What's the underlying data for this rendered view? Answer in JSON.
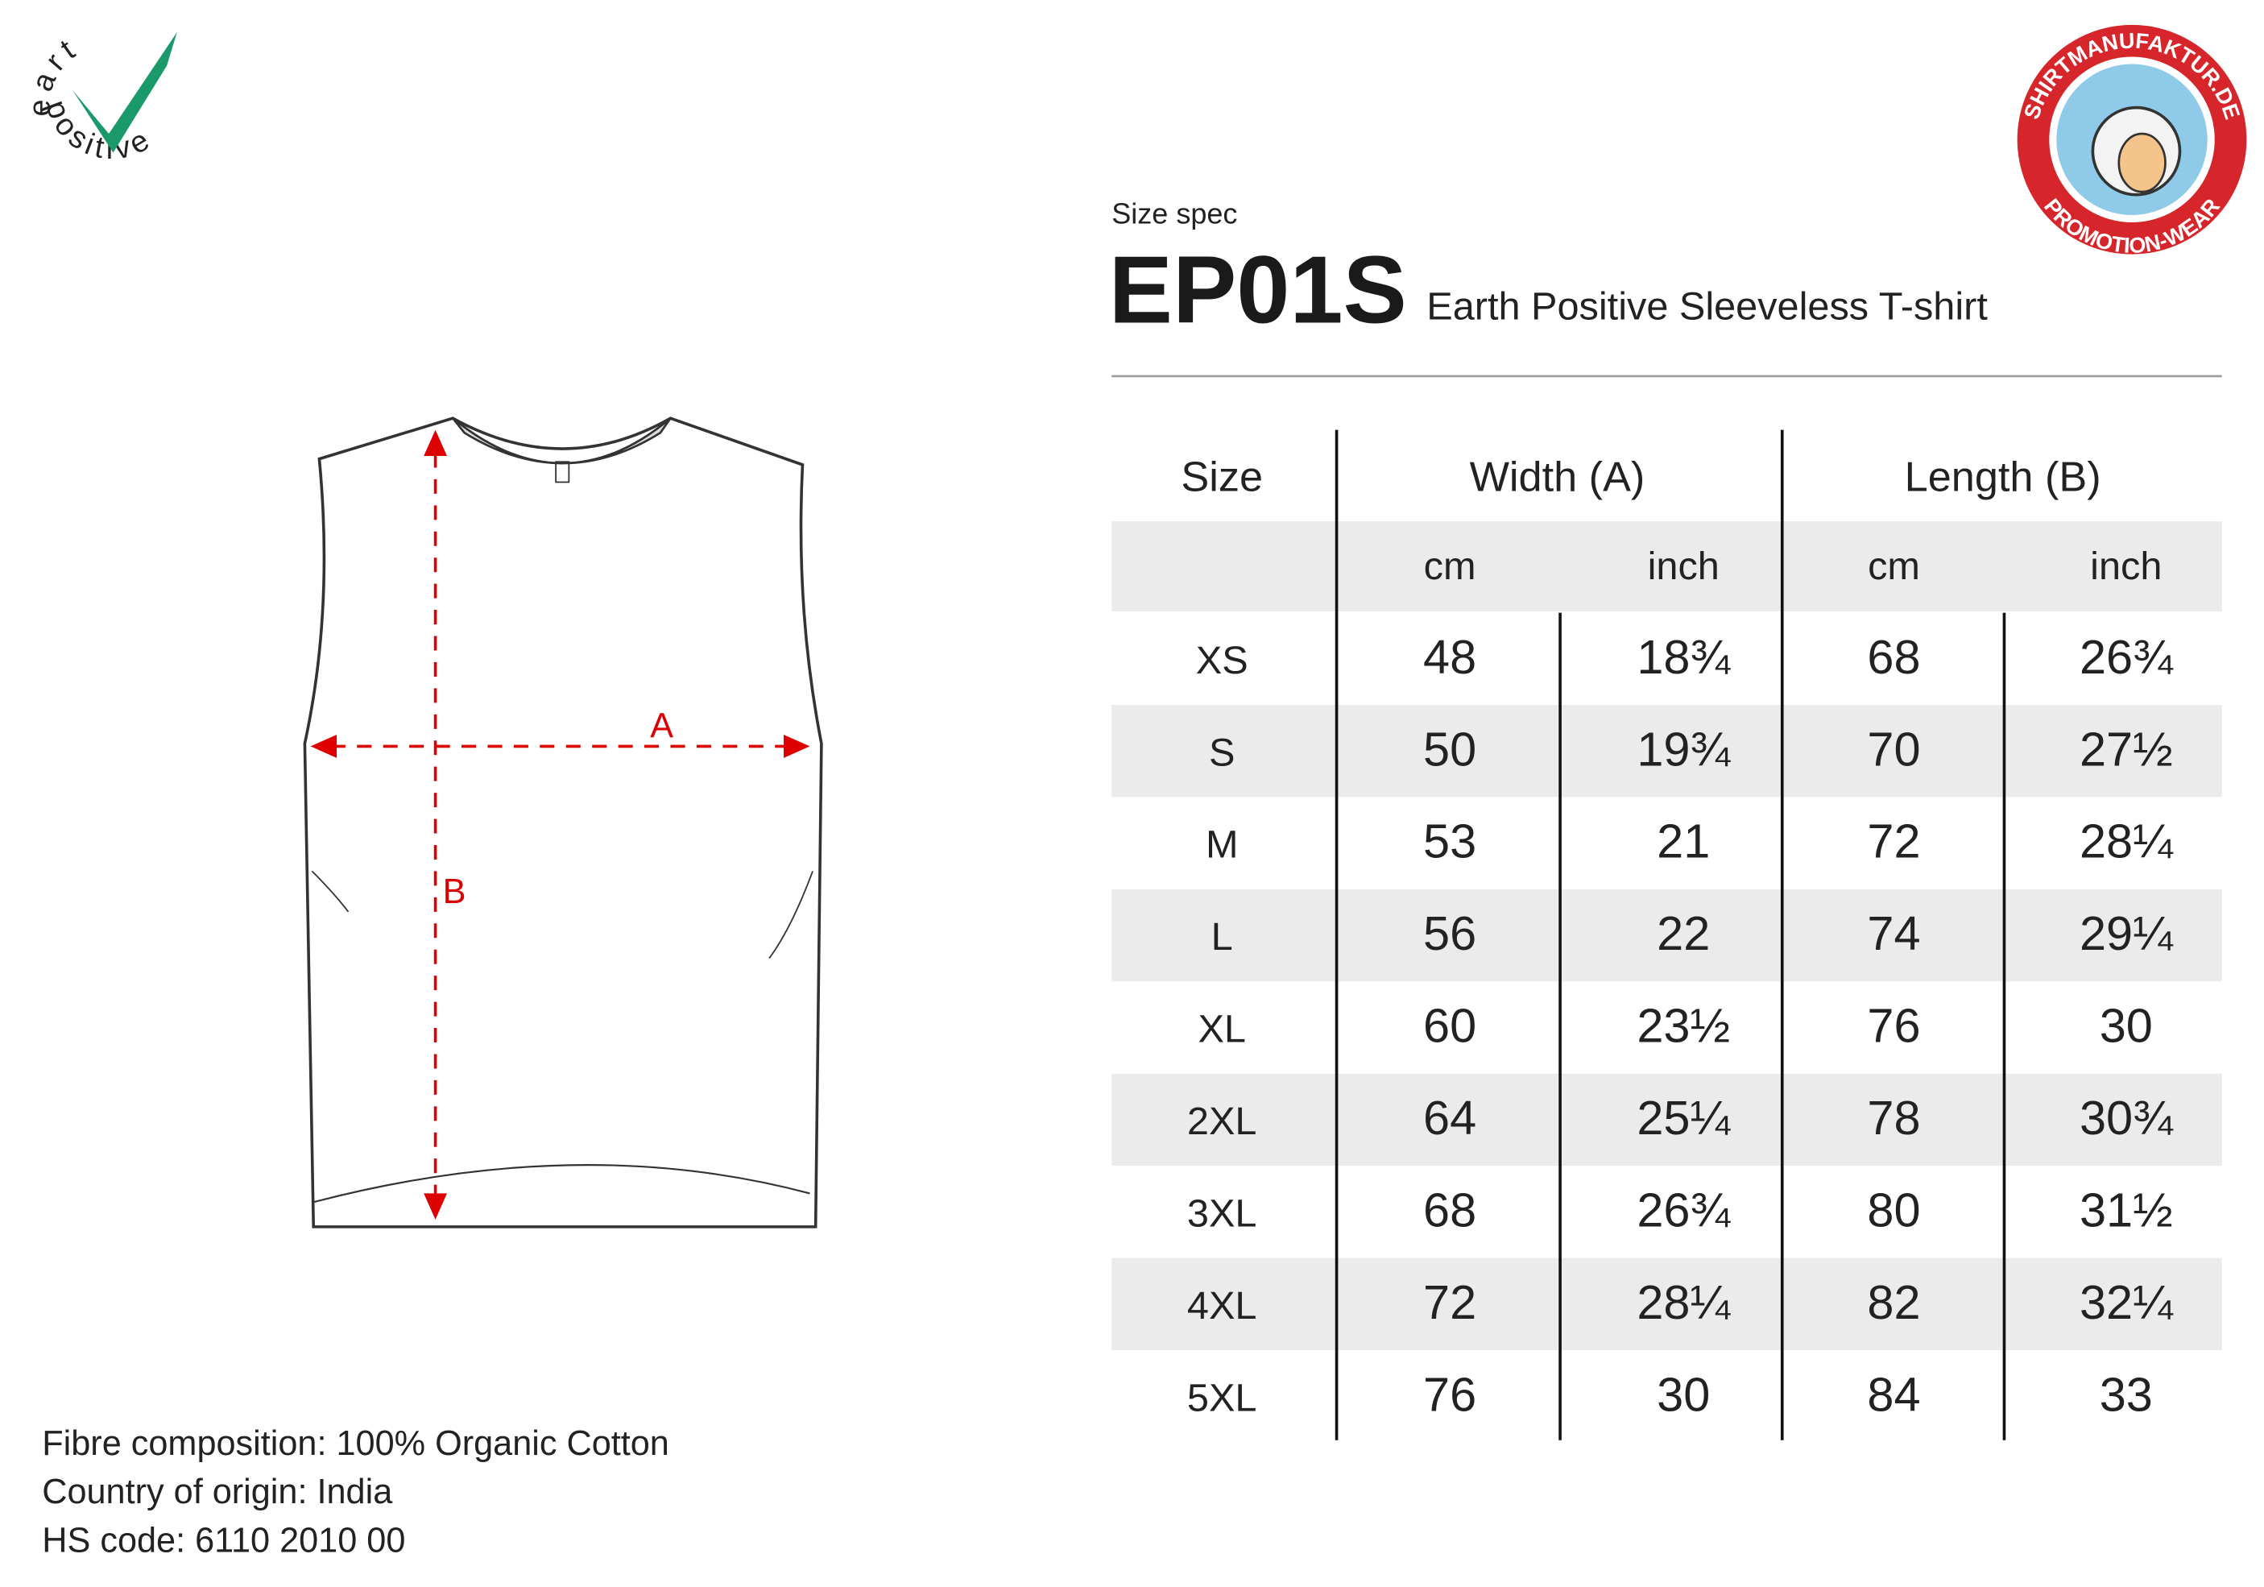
{
  "earth_logo": {
    "top": "eart",
    "bottom": "positive"
  },
  "brand_logo": {
    "top": "SHIRTMANUFAKTUR.DE",
    "bottom": "PROMOTION-WEAR"
  },
  "header": {
    "label": "Size spec",
    "code": "EP01S",
    "name": "Earth Positive Sleeveless T-shirt"
  },
  "diagram": {
    "width_label": "A",
    "length_label": "B"
  },
  "table": {
    "headers": [
      "Size",
      "Width (A)",
      "Length (B)"
    ],
    "units": [
      "cm",
      "inch",
      "cm",
      "inch"
    ],
    "rows": [
      [
        "XS",
        48,
        "18¾",
        68,
        "26¾"
      ],
      [
        "S",
        50,
        "19¾",
        70,
        "27½"
      ],
      [
        "M",
        53,
        21,
        72,
        "28¼"
      ],
      [
        "L",
        56,
        22,
        74,
        "29¼"
      ],
      [
        "XL",
        60,
        "23½",
        76,
        30
      ],
      [
        "2XL",
        64,
        "25¼",
        78,
        "30¾"
      ],
      [
        "3XL",
        68,
        "26¾",
        80,
        "31½"
      ],
      [
        "4XL",
        72,
        "28¼",
        82,
        "32¼"
      ],
      [
        "5XL",
        76,
        30,
        84,
        33
      ]
    ]
  },
  "footer": [
    "Fibre composition: 100% Organic Cotton",
    "Country of origin: India",
    "HS code: 6110 2010 00"
  ]
}
